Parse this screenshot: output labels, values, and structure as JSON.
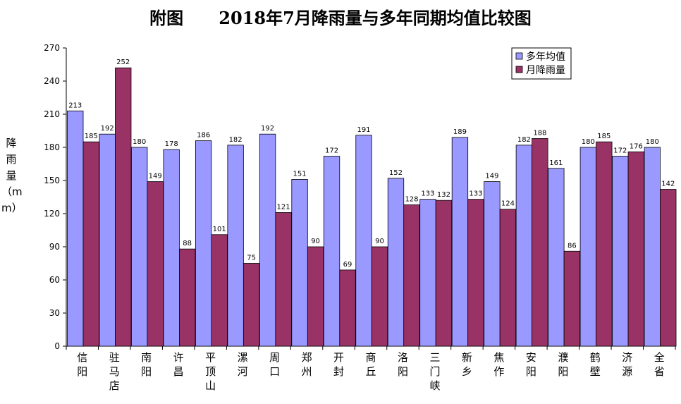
{
  "title": "附图      2018年7月降雨量与多年同期均值比较图",
  "chart_data": {
    "type": "bar",
    "title": "附图      2018年7月降雨量与多年同期均值比较图",
    "xlabel": "",
    "ylabel": "降雨量（mm）",
    "ylim": [
      0,
      270
    ],
    "yticks": [
      0,
      30,
      60,
      90,
      120,
      150,
      180,
      210,
      240,
      270
    ],
    "grid": false,
    "legend_position": "top-right",
    "categories": [
      "信阳",
      "驻马店",
      "南阳",
      "许昌",
      "平顶山",
      "漯河",
      "周口",
      "郑州",
      "开封",
      "商丘",
      "洛阳",
      "三门峡",
      "新乡",
      "焦作",
      "安阳",
      "濮阳",
      "鹤壁",
      "济源",
      "全省"
    ],
    "series": [
      {
        "name": "多年均值",
        "color": "#9999ff",
        "values": [
          213,
          192,
          180,
          178,
          186,
          182,
          192,
          151,
          172,
          191,
          152,
          133,
          189,
          149,
          182,
          161,
          180,
          172,
          180
        ]
      },
      {
        "name": "月降雨量",
        "color": "#993366",
        "values": [
          185,
          252,
          149,
          88,
          101,
          75,
          121,
          90,
          69,
          90,
          128,
          132,
          133,
          124,
          188,
          86,
          185,
          176,
          142
        ]
      }
    ]
  }
}
